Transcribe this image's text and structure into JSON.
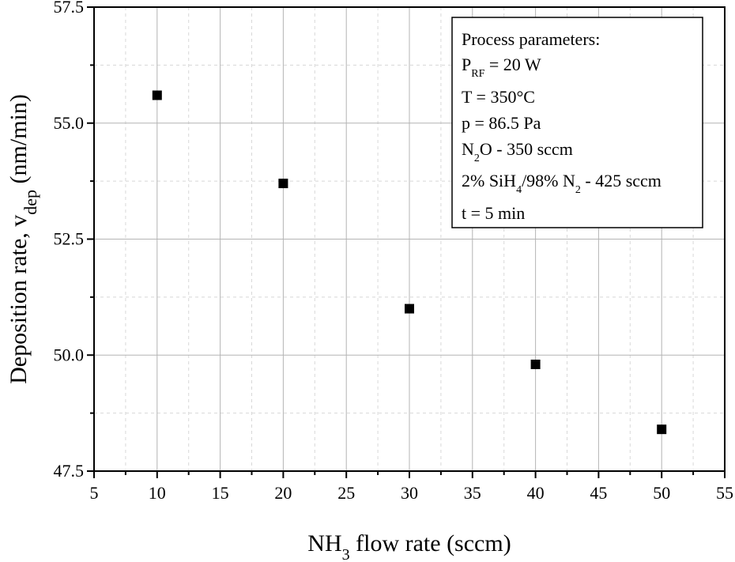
{
  "chart_data": {
    "type": "scatter",
    "x": [
      10,
      20,
      30,
      40,
      50
    ],
    "y": [
      55.6,
      53.7,
      51.0,
      49.8,
      48.4
    ],
    "series": [
      {
        "name": "Deposition rate",
        "x": [
          10,
          20,
          30,
          40,
          50
        ],
        "y": [
          55.6,
          53.7,
          51.0,
          49.8,
          48.4
        ],
        "marker": "square",
        "color": "#000000"
      }
    ],
    "xlim": [
      5,
      55
    ],
    "ylim": [
      47.5,
      57.5
    ],
    "x_ticks": [
      5,
      10,
      15,
      20,
      25,
      30,
      35,
      40,
      45,
      50,
      55
    ],
    "x_tick_labels": [
      "5",
      "10",
      "15",
      "20",
      "25",
      "30",
      "35",
      "40",
      "45",
      "50",
      "55"
    ],
    "y_ticks": [
      47.5,
      50.0,
      52.5,
      55.0,
      57.5
    ],
    "y_tick_labels": [
      "47.5",
      "50.0",
      "52.5",
      "55.0",
      "57.5"
    ],
    "xlabel": {
      "main": "NH",
      "sub": "3",
      "rest": " flow rate (sccm)"
    },
    "ylabel": {
      "main": "Deposition rate, v",
      "sub": "dep",
      "rest": " (nm/min)"
    },
    "grid": true,
    "legend_position": "top-right",
    "annotation": {
      "lines": [
        [
          {
            "t": "Process parameters:"
          }
        ],
        [
          {
            "t": "P"
          },
          {
            "t": "RF",
            "sub": true
          },
          {
            "t": " = 20 W"
          }
        ],
        [
          {
            "t": "T = 350°C"
          }
        ],
        [
          {
            "t": "p = 86.5 Pa"
          }
        ],
        [
          {
            "t": "N"
          },
          {
            "t": "2",
            "sub": true
          },
          {
            "t": "O - 350 sccm"
          }
        ],
        [
          {
            "t": "2% SiH"
          },
          {
            "t": "4",
            "sub": true
          },
          {
            "t": "/98% N"
          },
          {
            "t": "2",
            "sub": true
          },
          {
            "t": " - 425 sccm"
          }
        ],
        [
          {
            "t": "t = 5 min"
          }
        ]
      ]
    }
  },
  "colors": {
    "axis": "#000000",
    "grid_major": "#b4b4b4",
    "grid_minor": "#d8d8d8",
    "marker": "#000000"
  }
}
